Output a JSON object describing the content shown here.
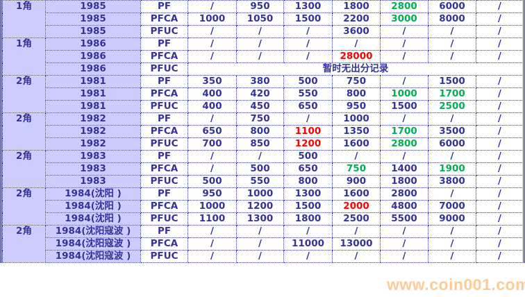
{
  "colors": {
    "text": "#333399",
    "label_bg": "#ccccff",
    "green": "#00b050",
    "red": "#ff0000"
  },
  "groups": [
    {
      "denom": "1角",
      "rows": [
        {
          "year": "1985",
          "type": "PF",
          "cells": [
            "/",
            "950",
            "1300",
            "1800",
            {
              "v": "2800",
              "c": "green"
            },
            "6000",
            "/"
          ]
        },
        {
          "year": "1985",
          "type": "PFCA",
          "cells": [
            "1000",
            "1050",
            "1500",
            "2200",
            {
              "v": "3000",
              "c": "green"
            },
            "8000",
            "/"
          ]
        },
        {
          "year": "1985",
          "type": "PFUC",
          "cells": [
            "/",
            "/",
            "/",
            "3600",
            "/",
            "/",
            "/"
          ]
        }
      ]
    },
    {
      "denom": "1角",
      "rows": [
        {
          "year": "1986",
          "type": "PF",
          "cells": [
            "/",
            "/",
            "/",
            "/",
            "/",
            "/",
            "/"
          ]
        },
        {
          "year": "1986",
          "type": "PFCA",
          "cells": [
            "/",
            "/",
            "/",
            {
              "v": "28000",
              "c": "red"
            },
            "/",
            "/",
            "/"
          ]
        },
        {
          "year": "1986",
          "type": "PFUC",
          "note": "暂时无出分记录"
        }
      ]
    },
    {
      "denom": "2角",
      "rows": [
        {
          "year": "1981",
          "type": "PF",
          "cells": [
            "350",
            "380",
            "500",
            "750",
            "/",
            "1500",
            "/"
          ]
        },
        {
          "year": "1981",
          "type": "PFCA",
          "cells": [
            "400",
            "420",
            "550",
            "800",
            {
              "v": "1000",
              "c": "green"
            },
            {
              "v": "1700",
              "c": "green"
            },
            "/"
          ]
        },
        {
          "year": "1981",
          "type": "PFUC",
          "cells": [
            "400",
            "450",
            "650",
            "950",
            "1500",
            {
              "v": "2500",
              "c": "green"
            },
            "/"
          ]
        }
      ]
    },
    {
      "denom": "2角",
      "rows": [
        {
          "year": "1982",
          "type": "PF",
          "cells": [
            "/",
            "750",
            "/",
            "1000",
            "/",
            "/",
            "/"
          ]
        },
        {
          "year": "1982",
          "type": "PFCA",
          "cells": [
            "650",
            "800",
            {
              "v": "1100",
              "c": "red"
            },
            "1350",
            {
              "v": "1700",
              "c": "green"
            },
            "3500",
            "/"
          ]
        },
        {
          "year": "1982",
          "type": "PFUC",
          "cells": [
            "700",
            "850",
            {
              "v": "1200",
              "c": "red"
            },
            "1600",
            {
              "v": "2800",
              "c": "green"
            },
            "6000",
            "/"
          ]
        }
      ]
    },
    {
      "denom": "2角",
      "rows": [
        {
          "year": "1983",
          "type": "PF",
          "cells": [
            "/",
            "/",
            "500",
            "/",
            "/",
            "/",
            "/"
          ]
        },
        {
          "year": "1983",
          "type": "PFCA",
          "cells": [
            "/",
            "500",
            "650",
            {
              "v": "750",
              "c": "green"
            },
            "1400",
            {
              "v": "1900",
              "c": "green"
            },
            "/"
          ]
        },
        {
          "year": "1983",
          "type": "PFUC",
          "cells": [
            "500",
            "550",
            "800",
            "900",
            "1800",
            "3800",
            "/"
          ]
        }
      ]
    },
    {
      "denom": "2角",
      "rows": [
        {
          "year": "1984(沈阳 )",
          "type": "PF",
          "cells": [
            "950",
            "1000",
            "1300",
            "1600",
            "2800",
            "/",
            "/"
          ]
        },
        {
          "year": "1984(沈阳 )",
          "type": "PFCA",
          "cells": [
            "1000",
            "1200",
            "1500",
            {
              "v": "2000",
              "c": "red"
            },
            "4800",
            "7000",
            "/"
          ]
        },
        {
          "year": "1984(沈阳 )",
          "type": "PFUC",
          "cells": [
            "1100",
            "1300",
            "1800",
            "2500",
            "5500",
            "9000",
            "/"
          ]
        }
      ]
    },
    {
      "denom": "2角",
      "rows": [
        {
          "year": "1984(沈阳寇波 )",
          "type": "PF",
          "cells": [
            "/",
            "/",
            "/",
            "/",
            "/",
            "/",
            "/"
          ]
        },
        {
          "year": "1984(沈阳寇波 )",
          "type": "PFCA",
          "cells": [
            "/",
            "/",
            "11000",
            "13000",
            "/",
            "/",
            "/"
          ]
        },
        {
          "year": "1984(沈阳寇波 )",
          "type": "PFUC",
          "cells": [
            "/",
            "/",
            "/",
            "/",
            "/",
            "/",
            "/"
          ]
        }
      ]
    }
  ],
  "watermark": "www.coin001.com"
}
